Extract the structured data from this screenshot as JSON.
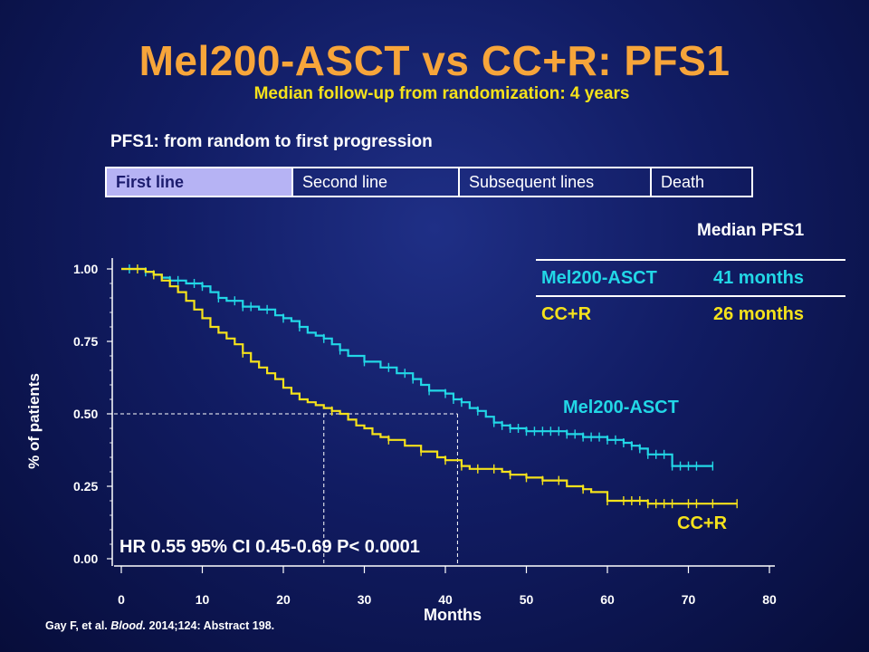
{
  "slide": {
    "title": "Mel200-ASCT vs CC+R: PFS1",
    "subtitle": "Median follow-up from randomization: 4 years",
    "pfs_heading": "PFS1: from random to first progression",
    "treatment_lines": [
      "First line",
      "Second line",
      "Subsequent lines",
      "Death"
    ],
    "median_table": {
      "title": "Median PFS1",
      "rows": [
        {
          "arm": "Mel200-ASCT",
          "value": "41 months",
          "color": "#22d7e6"
        },
        {
          "arm": "CC+R",
          "value": "26 months",
          "color": "#f5e21b"
        }
      ]
    },
    "citation": {
      "authors": "Gay F, et al. ",
      "journal": "Blood.",
      "details": " 2014;124: Abstract 198."
    }
  },
  "chart_data": {
    "type": "line",
    "xlabel": "Months",
    "ylabel": "% of patients",
    "xlim": [
      0,
      80
    ],
    "ylim": [
      0,
      1
    ],
    "xticks": [
      0,
      10,
      20,
      30,
      40,
      50,
      60,
      70,
      80
    ],
    "yticks": [
      "0.00",
      "0.25",
      "0.50",
      "0.75",
      "1.00"
    ],
    "yticks_values": [
      0,
      0.25,
      0.5,
      0.75,
      1.0
    ],
    "annotation": "HR 0.55 95% CI 0.45-0.69 P< 0.0001",
    "median_reference": {
      "y": 0.5,
      "x_values": [
        25,
        41.5
      ]
    },
    "series": [
      {
        "name": "Mel200-ASCT",
        "color": "#22d7e6",
        "x": [
          0,
          2,
          3,
          4,
          5,
          6,
          7,
          8,
          9,
          10,
          11,
          12,
          13,
          15,
          17,
          19,
          20,
          21,
          22,
          23,
          24,
          25,
          26,
          27,
          28,
          30,
          32,
          34,
          36,
          37,
          38,
          40,
          41,
          42,
          43,
          44,
          45,
          46,
          47,
          48,
          50,
          52,
          55,
          56,
          57,
          58,
          60,
          61,
          62,
          63,
          64,
          65,
          66,
          67,
          68,
          70,
          73
        ],
        "y": [
          1.0,
          1.0,
          0.99,
          0.98,
          0.97,
          0.96,
          0.96,
          0.95,
          0.95,
          0.94,
          0.92,
          0.9,
          0.89,
          0.87,
          0.86,
          0.84,
          0.83,
          0.82,
          0.8,
          0.78,
          0.77,
          0.76,
          0.74,
          0.72,
          0.7,
          0.68,
          0.66,
          0.64,
          0.62,
          0.6,
          0.58,
          0.57,
          0.55,
          0.54,
          0.52,
          0.51,
          0.49,
          0.47,
          0.46,
          0.45,
          0.44,
          0.44,
          0.43,
          0.43,
          0.42,
          0.42,
          0.41,
          0.41,
          0.4,
          0.39,
          0.38,
          0.36,
          0.36,
          0.36,
          0.32,
          0.32,
          0.32
        ],
        "censor_x": [
          1,
          3,
          6,
          7,
          9,
          10,
          12,
          14,
          15,
          16,
          18,
          20,
          22,
          25,
          27,
          30,
          33,
          35,
          36,
          38,
          40,
          41,
          42,
          44,
          46,
          47,
          48,
          49,
          50,
          51,
          52,
          53,
          54,
          55,
          56,
          57,
          58,
          59,
          60,
          61,
          62,
          63,
          64,
          65,
          66,
          67,
          68,
          69,
          70,
          71,
          73
        ]
      },
      {
        "name": "CC+R",
        "color": "#f5e21b",
        "x": [
          0,
          2,
          3,
          4,
          5,
          6,
          7,
          8,
          9,
          10,
          11,
          12,
          13,
          14,
          15,
          16,
          17,
          18,
          19,
          20,
          21,
          22,
          23,
          24,
          25,
          26,
          27,
          28,
          29,
          30,
          31,
          32,
          33,
          35,
          37,
          39,
          40,
          42,
          43,
          45,
          47,
          48,
          49,
          50,
          52,
          55,
          57,
          58,
          60,
          65,
          70,
          76
        ],
        "y": [
          1.0,
          1.0,
          0.99,
          0.98,
          0.96,
          0.94,
          0.92,
          0.89,
          0.86,
          0.83,
          0.8,
          0.78,
          0.76,
          0.74,
          0.71,
          0.68,
          0.66,
          0.64,
          0.62,
          0.59,
          0.57,
          0.55,
          0.54,
          0.53,
          0.52,
          0.51,
          0.5,
          0.48,
          0.46,
          0.45,
          0.43,
          0.42,
          0.41,
          0.39,
          0.37,
          0.35,
          0.34,
          0.32,
          0.31,
          0.31,
          0.3,
          0.29,
          0.29,
          0.28,
          0.27,
          0.25,
          0.24,
          0.23,
          0.2,
          0.19,
          0.19,
          0.19
        ],
        "censor_x": [
          2,
          4,
          15,
          26,
          33,
          37,
          40,
          42,
          44,
          46,
          48,
          50,
          52,
          54,
          57,
          60,
          62,
          63,
          64,
          65,
          66,
          67,
          68,
          70,
          71,
          73,
          76
        ]
      }
    ],
    "series_labels": [
      "Mel200-ASCT",
      "CC+R"
    ]
  }
}
